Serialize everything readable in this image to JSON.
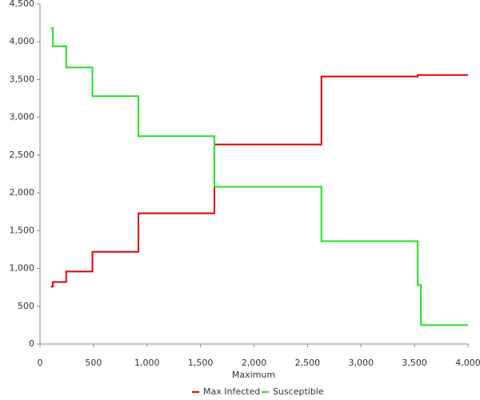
{
  "chart_data": {
    "type": "line",
    "xlabel": "Maximum",
    "x": [
      100,
      120,
      120,
      245,
      245,
      490,
      490,
      920,
      920,
      1630,
      1630,
      2630,
      2630,
      3530,
      3530,
      3560,
      3560,
      4000
    ],
    "series": [
      {
        "name": "Max Infected",
        "color": "#e00000",
        "values": [
          760,
          760,
          820,
          820,
          960,
          960,
          1220,
          1220,
          1730,
          1730,
          2640,
          2640,
          3540,
          3540,
          3560,
          3560,
          3560,
          3560
        ]
      },
      {
        "name": "Susceptible",
        "color": "#22e022",
        "values": [
          4180,
          4180,
          3940,
          3940,
          3660,
          3660,
          3280,
          3280,
          2750,
          2750,
          2080,
          2080,
          1360,
          1360,
          780,
          780,
          250,
          250
        ]
      }
    ],
    "xlim": [
      0,
      4000
    ],
    "xticks": [
      0,
      500,
      {
        "value": 1000,
        "label": "1,000"
      },
      {
        "value": 1500,
        "label": "1,500"
      },
      {
        "value": 2000,
        "label": "2,000"
      },
      {
        "value": 2500,
        "label": "2,500"
      },
      {
        "value": 3000,
        "label": "3,000"
      },
      {
        "value": 3500,
        "label": "3,500"
      },
      {
        "value": 4000,
        "label": "4,000"
      }
    ],
    "ylim": [
      0,
      4500
    ],
    "yticks": [
      0,
      500,
      {
        "value": 1000,
        "label": "1,000"
      },
      {
        "value": 1500,
        "label": "1,500"
      },
      {
        "value": 2000,
        "label": "2,000"
      },
      {
        "value": 2500,
        "label": "2,500"
      },
      {
        "value": 3000,
        "label": "3,000"
      },
      {
        "value": 3500,
        "label": "3,500"
      },
      {
        "value": 4000,
        "label": "4,000"
      },
      {
        "value": 4500,
        "label": "4,500"
      }
    ],
    "legend": "bottom"
  }
}
